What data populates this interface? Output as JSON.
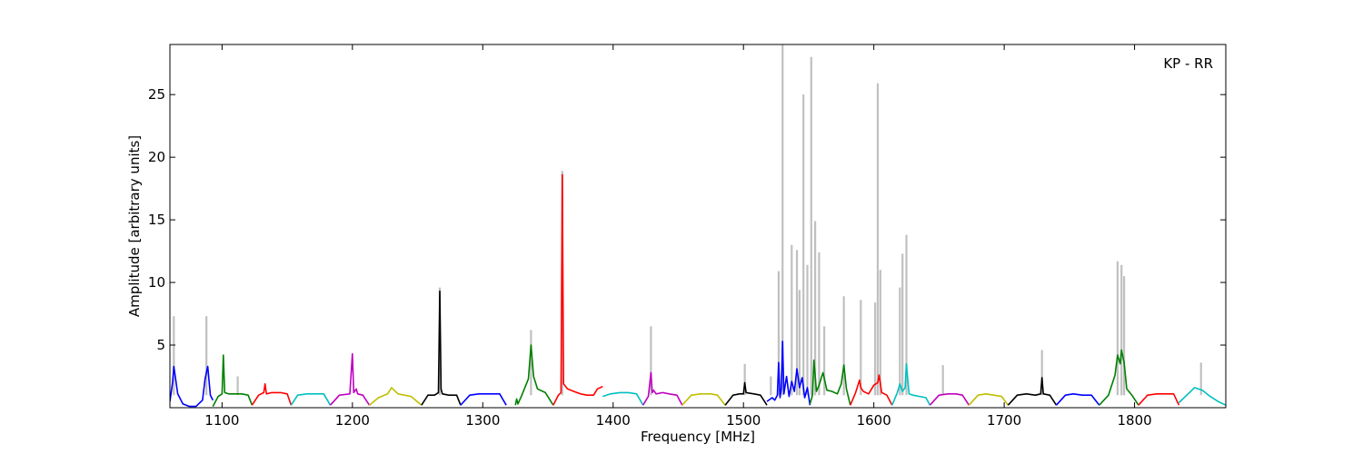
{
  "chart_data": {
    "type": "line",
    "title": "",
    "xlabel": "Frequency [MHz]",
    "ylabel": "Amplitude [arbitrary units]",
    "annotation": "KP - RR",
    "xlim": [
      1060,
      1870
    ],
    "ylim": [
      0,
      29
    ],
    "xticks": [
      1100,
      1200,
      1300,
      1400,
      1500,
      1600,
      1700,
      1800
    ],
    "xtick_labels": [
      "1100",
      "1200",
      "1300",
      "1400",
      "1500",
      "1600",
      "1700",
      "1800"
    ],
    "yticks": [
      5,
      10,
      15,
      20,
      25
    ],
    "ytick_labels": [
      "5",
      "10",
      "15",
      "20",
      "25"
    ],
    "grid": false,
    "background_series": {
      "color": "#c0c0c0",
      "peaks": [
        [
          1063,
          7.3
        ],
        [
          1088,
          7.3
        ],
        [
          1112,
          2.5
        ],
        [
          1267,
          9.6
        ],
        [
          1337,
          6.2
        ],
        [
          1361,
          18.9
        ],
        [
          1429,
          6.5
        ],
        [
          1501,
          3.5
        ],
        [
          1521,
          2.5
        ],
        [
          1527,
          10.9
        ],
        [
          1530,
          29.0
        ],
        [
          1537,
          13.0
        ],
        [
          1541,
          12.6
        ],
        [
          1543,
          9.4
        ],
        [
          1546,
          25.0
        ],
        [
          1549,
          11.4
        ],
        [
          1552,
          28.0
        ],
        [
          1555,
          14.9
        ],
        [
          1558,
          12.4
        ],
        [
          1562,
          6.5
        ],
        [
          1577,
          8.9
        ],
        [
          1590,
          8.6
        ],
        [
          1601,
          8.4
        ],
        [
          1603,
          25.9
        ],
        [
          1605,
          11.0
        ],
        [
          1620,
          9.6
        ],
        [
          1622,
          12.3
        ],
        [
          1625,
          13.8
        ],
        [
          1653,
          3.4
        ],
        [
          1729,
          4.6
        ],
        [
          1787,
          11.7
        ],
        [
          1790,
          11.4
        ],
        [
          1792,
          10.5
        ],
        [
          1851,
          3.6
        ]
      ]
    },
    "series": [
      {
        "color": "#0000ff",
        "x": [
          1060,
          1062,
          1063,
          1066,
          1070,
          1075,
          1080,
          1085,
          1087,
          1089,
          1091,
          1093
        ],
        "y": [
          0.5,
          2.0,
          3.3,
          1.1,
          0.3,
          0.1,
          0.1,
          0.6,
          2.3,
          3.3,
          1.0,
          0.6
        ]
      },
      {
        "color": "#008000",
        "x": [
          1093,
          1097,
          1100,
          1101,
          1102,
          1105,
          1110,
          1115,
          1120,
          1123
        ],
        "y": [
          0.1,
          0.9,
          1.1,
          4.2,
          1.2,
          1.1,
          1.1,
          1.1,
          1.0,
          0.2
        ]
      },
      {
        "color": "#ff0000",
        "x": [
          1123,
          1128,
          1132,
          1133,
          1134,
          1138,
          1145,
          1150,
          1153
        ],
        "y": [
          0.2,
          1.0,
          1.2,
          1.9,
          1.1,
          1.2,
          1.2,
          1.1,
          0.2
        ]
      },
      {
        "color": "#00bfbf",
        "x": [
          1153,
          1158,
          1165,
          1172,
          1178,
          1183
        ],
        "y": [
          0.2,
          1.0,
          1.1,
          1.1,
          1.1,
          0.2
        ]
      },
      {
        "color": "#bf00bf",
        "x": [
          1183,
          1190,
          1198,
          1200,
          1201,
          1203,
          1204,
          1208,
          1213
        ],
        "y": [
          0.2,
          1.0,
          1.1,
          4.3,
          1.2,
          1.5,
          1.1,
          1.0,
          0.2
        ]
      },
      {
        "color": "#bfbf00",
        "x": [
          1213,
          1220,
          1227,
          1230,
          1235,
          1240,
          1245,
          1253
        ],
        "y": [
          0.2,
          0.8,
          1.1,
          1.6,
          1.1,
          1.0,
          0.9,
          0.2
        ]
      },
      {
        "color": "#000000",
        "x": [
          1253,
          1258,
          1263,
          1266,
          1267,
          1268,
          1269,
          1274,
          1280,
          1283
        ],
        "y": [
          0.2,
          1.0,
          1.0,
          1.2,
          9.3,
          1.5,
          1.1,
          1.0,
          1.0,
          0.2
        ]
      },
      {
        "color": "#0000ff",
        "x": [
          1283,
          1290,
          1297,
          1305,
          1313,
          1318
        ],
        "y": [
          0.2,
          1.0,
          1.1,
          1.1,
          1.1,
          0.2
        ]
      },
      {
        "color": "#008000",
        "x": [
          1325,
          1326,
          1327,
          1330,
          1335,
          1337,
          1339,
          1342,
          1348,
          1354
        ],
        "y": [
          0.2,
          0.7,
          0.3,
          1.0,
          2.3,
          5.0,
          2.5,
          1.5,
          1.2,
          0.2
        ]
      },
      {
        "color": "#ff0000",
        "x": [
          1354,
          1358,
          1360,
          1361,
          1362,
          1365,
          1370,
          1375,
          1380,
          1385,
          1388,
          1392
        ],
        "y": [
          0.2,
          1.0,
          1.2,
          18.6,
          1.9,
          1.5,
          1.3,
          1.1,
          1.0,
          1.0,
          1.5,
          1.7
        ]
      },
      {
        "color": "#00bfbf",
        "x": [
          1392,
          1398,
          1405,
          1412,
          1418,
          1423
        ],
        "y": [
          0.9,
          1.1,
          1.2,
          1.2,
          1.1,
          0.2
        ]
      },
      {
        "color": "#bf00bf",
        "x": [
          1423,
          1427,
          1429,
          1430,
          1431,
          1433,
          1438,
          1443,
          1449,
          1453
        ],
        "y": [
          0.2,
          0.9,
          2.8,
          1.2,
          1.4,
          1.1,
          1.2,
          1.1,
          1.0,
          0.2
        ]
      },
      {
        "color": "#bfbf00",
        "x": [
          1453,
          1460,
          1467,
          1475,
          1480,
          1486
        ],
        "y": [
          0.2,
          1.0,
          1.1,
          1.1,
          1.0,
          0.2
        ]
      },
      {
        "color": "#000000",
        "x": [
          1486,
          1492,
          1497,
          1500,
          1501,
          1502,
          1508,
          1513,
          1518
        ],
        "y": [
          0.2,
          1.0,
          1.1,
          1.1,
          2.0,
          1.2,
          1.1,
          1.0,
          0.2
        ]
      },
      {
        "color": "#0000ff",
        "x": [
          1518,
          1522,
          1524,
          1526,
          1527,
          1528,
          1529,
          1530,
          1531,
          1533,
          1535,
          1537,
          1539,
          1541,
          1543,
          1545,
          1547,
          1549,
          1551
        ],
        "y": [
          0.5,
          0.8,
          0.6,
          1.0,
          3.6,
          0.8,
          1.5,
          5.3,
          1.1,
          2.5,
          0.9,
          2.1,
          1.3,
          3.1,
          1.6,
          2.4,
          0.8,
          1.6,
          0.2
        ]
      },
      {
        "color": "#008000",
        "x": [
          1551,
          1553,
          1554,
          1556,
          1558,
          1561,
          1564,
          1568,
          1572,
          1575,
          1577,
          1579,
          1582
        ],
        "y": [
          0.3,
          1.0,
          3.8,
          1.3,
          1.8,
          2.8,
          1.4,
          1.3,
          1.1,
          1.9,
          3.4,
          1.5,
          0.2
        ]
      },
      {
        "color": "#ff0000",
        "x": [
          1582,
          1586,
          1589,
          1590,
          1592,
          1596,
          1600,
          1603,
          1604,
          1606,
          1610,
          1614
        ],
        "y": [
          0.2,
          1.2,
          2.2,
          1.6,
          1.3,
          1.1,
          1.8,
          2.0,
          2.6,
          1.2,
          1.0,
          0.2
        ]
      },
      {
        "color": "#00bfbf",
        "x": [
          1614,
          1618,
          1620,
          1622,
          1624,
          1625,
          1627,
          1630,
          1635,
          1640,
          1643
        ],
        "y": [
          0.2,
          1.2,
          1.9,
          1.3,
          1.6,
          3.5,
          1.1,
          1.0,
          0.9,
          0.8,
          0.2
        ]
      },
      {
        "color": "#bf00bf",
        "x": [
          1643,
          1650,
          1657,
          1663,
          1668,
          1673
        ],
        "y": [
          0.2,
          1.0,
          1.1,
          1.1,
          1.0,
          0.2
        ]
      },
      {
        "color": "#bfbf00",
        "x": [
          1673,
          1680,
          1686,
          1692,
          1698,
          1703
        ],
        "y": [
          0.2,
          1.0,
          1.1,
          1.0,
          0.9,
          0.2
        ]
      },
      {
        "color": "#000000",
        "x": [
          1703,
          1710,
          1717,
          1724,
          1728,
          1729,
          1730,
          1735,
          1740
        ],
        "y": [
          0.2,
          1.0,
          1.1,
          1.0,
          1.1,
          2.4,
          1.1,
          1.0,
          0.2
        ]
      },
      {
        "color": "#0000ff",
        "x": [
          1740,
          1747,
          1753,
          1760,
          1767,
          1773
        ],
        "y": [
          0.2,
          1.0,
          1.1,
          1.0,
          1.0,
          0.2
        ]
      },
      {
        "color": "#008000",
        "x": [
          1773,
          1780,
          1785,
          1787,
          1789,
          1790,
          1792,
          1794,
          1798,
          1803
        ],
        "y": [
          0.2,
          1.0,
          2.6,
          4.2,
          3.5,
          4.6,
          3.6,
          1.5,
          1.0,
          0.2
        ]
      },
      {
        "color": "#ff0000",
        "x": [
          1803,
          1810,
          1817,
          1825,
          1830,
          1834
        ],
        "y": [
          0.2,
          1.0,
          1.1,
          1.1,
          1.1,
          0.2
        ]
      },
      {
        "color": "#00bfbf",
        "x": [
          1834,
          1840,
          1846,
          1852,
          1858,
          1864,
          1870
        ],
        "y": [
          0.4,
          1.0,
          1.6,
          1.4,
          0.9,
          0.5,
          0.2
        ]
      }
    ]
  }
}
